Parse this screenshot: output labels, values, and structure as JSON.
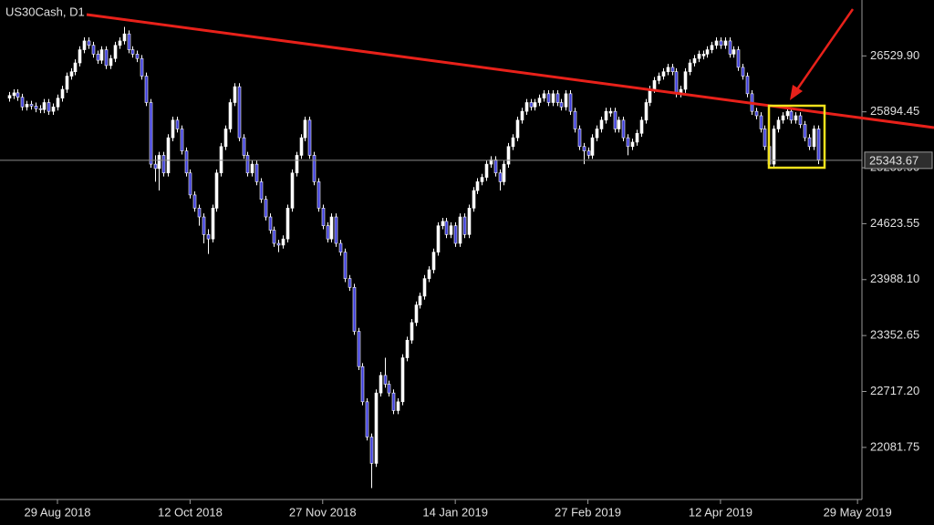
{
  "chart_data": {
    "type": "candlestick",
    "title": "US30Cash, D1",
    "up_color": "#ffffff",
    "down_color": "#3a3ad8",
    "wick_color": "#ffffff",
    "current_price": 25343.67,
    "ylim": [
      21490,
      27165
    ],
    "yticks": [
      {
        "value": 26529.9,
        "label": "26529.90"
      },
      25894.45,
      {
        "value": 25259,
        "label": "25259.00"
      },
      24623.55,
      {
        "value": 23988.1,
        "label": "23988.10"
      },
      23352.65,
      {
        "value": 22717.2,
        "label": "22717.20"
      },
      22081.75
    ],
    "xlim": [
      -2,
      193
    ],
    "xticks": [
      {
        "value": 11,
        "label": "29 Aug 2018"
      },
      {
        "value": 41,
        "label": "12 Oct 2018"
      },
      {
        "value": 71,
        "label": "27 Nov 2018"
      },
      {
        "value": 101,
        "label": "14 Jan 2019"
      },
      {
        "value": 131,
        "label": "27 Feb 2019"
      },
      {
        "value": 161,
        "label": "12 Apr 2019"
      },
      {
        "value": 192,
        "label": "29 May 2019"
      }
    ],
    "ohlc": [
      [
        26050,
        26120,
        26010,
        26080
      ],
      [
        26080,
        26150,
        26040,
        26110
      ],
      [
        26110,
        26150,
        26020,
        26060
      ],
      [
        26060,
        26100,
        25910,
        25950
      ],
      [
        25950,
        26020,
        25910,
        25980
      ],
      [
        25980,
        26020,
        25920,
        25960
      ],
      [
        25960,
        26000,
        25890,
        25930
      ],
      [
        25930,
        25970,
        25880,
        25920
      ],
      [
        25920,
        26040,
        25880,
        26000
      ],
      [
        26000,
        26040,
        25860,
        25900
      ],
      [
        25900,
        25990,
        25860,
        25950
      ],
      [
        25950,
        26090,
        25910,
        26050
      ],
      [
        26050,
        26190,
        26010,
        26150
      ],
      [
        26150,
        26340,
        26110,
        26300
      ],
      [
        26300,
        26390,
        26260,
        26350
      ],
      [
        26350,
        26490,
        26310,
        26450
      ],
      [
        26450,
        26640,
        26410,
        26600
      ],
      [
        26600,
        26740,
        26560,
        26700
      ],
      [
        26700,
        26740,
        26610,
        26650
      ],
      [
        26650,
        26690,
        26510,
        26550
      ],
      [
        26550,
        26590,
        26440,
        26480
      ],
      [
        26480,
        26640,
        26440,
        26600
      ],
      [
        26600,
        26640,
        26380,
        26420
      ],
      [
        26420,
        26540,
        26380,
        26500
      ],
      [
        26500,
        26690,
        26460,
        26650
      ],
      [
        26650,
        26740,
        26610,
        26700
      ],
      [
        26700,
        26860,
        26660,
        26780
      ],
      [
        26780,
        26820,
        26560,
        26600
      ],
      [
        26600,
        26640,
        26510,
        26550
      ],
      [
        26550,
        26590,
        26460,
        26500
      ],
      [
        26500,
        26540,
        26260,
        26300
      ],
      [
        26300,
        26340,
        25960,
        26000
      ],
      [
        26000,
        26040,
        25260,
        25300
      ],
      [
        25300,
        25400,
        25100,
        25250
      ],
      [
        25250,
        25440,
        25000,
        25400
      ],
      [
        25400,
        25440,
        25160,
        25200
      ],
      [
        25200,
        25640,
        25160,
        25600
      ],
      [
        25600,
        25840,
        25560,
        25800
      ],
      [
        25800,
        25840,
        25660,
        25700
      ],
      [
        25700,
        25740,
        25410,
        25450
      ],
      [
        25450,
        25490,
        25160,
        25200
      ],
      [
        25200,
        25240,
        24910,
        24950
      ],
      [
        24950,
        24990,
        24760,
        24800
      ],
      [
        24800,
        24840,
        24600,
        24700
      ],
      [
        24700,
        24740,
        24400,
        24500
      ],
      [
        24500,
        24560,
        24280,
        24450
      ],
      [
        24450,
        24840,
        24410,
        24800
      ],
      [
        24800,
        25240,
        24760,
        25200
      ],
      [
        25200,
        25540,
        25160,
        25500
      ],
      [
        25500,
        25740,
        25460,
        25700
      ],
      [
        25700,
        26040,
        25660,
        26000
      ],
      [
        26000,
        26220,
        25960,
        26180
      ],
      [
        26180,
        26220,
        25560,
        25600
      ],
      [
        25600,
        25640,
        25360,
        25400
      ],
      [
        25400,
        25440,
        25160,
        25200
      ],
      [
        25200,
        25340,
        25160,
        25300
      ],
      [
        25300,
        25340,
        25060,
        25100
      ],
      [
        25100,
        25140,
        24860,
        24900
      ],
      [
        24900,
        24940,
        24660,
        24700
      ],
      [
        24700,
        24740,
        24510,
        24550
      ],
      [
        24550,
        24590,
        24360,
        24400
      ],
      [
        24400,
        24440,
        24300,
        24380
      ],
      [
        24380,
        24490,
        24340,
        24450
      ],
      [
        24450,
        24840,
        24410,
        24800
      ],
      [
        24800,
        25240,
        24760,
        25200
      ],
      [
        25200,
        25440,
        25160,
        25400
      ],
      [
        25400,
        25640,
        25360,
        25600
      ],
      [
        25600,
        25840,
        25560,
        25800
      ],
      [
        25800,
        25840,
        25360,
        25400
      ],
      [
        25400,
        25440,
        25060,
        25100
      ],
      [
        25100,
        25140,
        24760,
        24800
      ],
      [
        24800,
        24840,
        24560,
        24600
      ],
      [
        24600,
        24640,
        24410,
        24450
      ],
      [
        24450,
        24740,
        24410,
        24700
      ],
      [
        24700,
        24740,
        24360,
        24400
      ],
      [
        24400,
        24440,
        24260,
        24300
      ],
      [
        24300,
        24340,
        23960,
        24000
      ],
      [
        24000,
        24040,
        23860,
        23900
      ],
      [
        23900,
        23940,
        23360,
        23400
      ],
      [
        23400,
        23440,
        22960,
        23000
      ],
      [
        23000,
        23040,
        22560,
        22600
      ],
      [
        22600,
        22640,
        22160,
        22200
      ],
      [
        22200,
        22240,
        21620,
        21900
      ],
      [
        21900,
        22740,
        21860,
        22700
      ],
      [
        22700,
        22940,
        22660,
        22900
      ],
      [
        22900,
        23100,
        22760,
        22800
      ],
      [
        22800,
        22840,
        22660,
        22700
      ],
      [
        22700,
        22740,
        22460,
        22500
      ],
      [
        22500,
        22640,
        22460,
        22600
      ],
      [
        22600,
        23140,
        22560,
        23100
      ],
      [
        23100,
        23340,
        23060,
        23300
      ],
      [
        23300,
        23540,
        23260,
        23500
      ],
      [
        23500,
        23740,
        23460,
        23700
      ],
      [
        23700,
        23840,
        23660,
        23800
      ],
      [
        23800,
        24040,
        23760,
        24000
      ],
      [
        24000,
        24140,
        23960,
        24100
      ],
      [
        24100,
        24340,
        24060,
        24300
      ],
      [
        24300,
        24640,
        24260,
        24600
      ],
      [
        24600,
        24690,
        24560,
        24650
      ],
      [
        24650,
        24690,
        24460,
        24500
      ],
      [
        24500,
        24640,
        24460,
        24600
      ],
      [
        24600,
        24640,
        24360,
        24400
      ],
      [
        24400,
        24740,
        24360,
        24700
      ],
      [
        24700,
        24740,
        24460,
        24500
      ],
      [
        24500,
        24840,
        24460,
        24800
      ],
      [
        24800,
        25040,
        24760,
        25000
      ],
      [
        25000,
        25140,
        24960,
        25100
      ],
      [
        25100,
        25190,
        25060,
        25150
      ],
      [
        25150,
        25340,
        25110,
        25300
      ],
      [
        25300,
        25390,
        25260,
        25350
      ],
      [
        25350,
        25390,
        25160,
        25200
      ],
      [
        25200,
        25240,
        25000,
        25100
      ],
      [
        25100,
        25340,
        25060,
        25300
      ],
      [
        25300,
        25540,
        25260,
        25500
      ],
      [
        25500,
        25640,
        25460,
        25600
      ],
      [
        25600,
        25840,
        25560,
        25800
      ],
      [
        25800,
        25940,
        25760,
        25900
      ],
      [
        25900,
        26040,
        25860,
        26000
      ],
      [
        26000,
        26040,
        25910,
        25950
      ],
      [
        25950,
        26040,
        25910,
        26000
      ],
      [
        26000,
        26090,
        25960,
        26050
      ],
      [
        26050,
        26140,
        26010,
        26100
      ],
      [
        26100,
        26140,
        25960,
        26000
      ],
      [
        26000,
        26140,
        25960,
        26100
      ],
      [
        26100,
        26140,
        25960,
        26000
      ],
      [
        26000,
        26040,
        25910,
        25950
      ],
      [
        25950,
        26140,
        25910,
        26100
      ],
      [
        26100,
        26140,
        25860,
        25900
      ],
      [
        25900,
        25940,
        25660,
        25700
      ],
      [
        25700,
        25740,
        25460,
        25500
      ],
      [
        25500,
        25540,
        25300,
        25450
      ],
      [
        25450,
        25490,
        25360,
        25400
      ],
      [
        25400,
        25640,
        25360,
        25600
      ],
      [
        25600,
        25740,
        25560,
        25700
      ],
      [
        25700,
        25840,
        25660,
        25800
      ],
      [
        25800,
        25940,
        25760,
        25900
      ],
      [
        25880,
        25940,
        25840,
        25900
      ],
      [
        25900,
        25940,
        25660,
        25700
      ],
      [
        25700,
        25840,
        25660,
        25800
      ],
      [
        25800,
        25840,
        25560,
        25600
      ],
      [
        25600,
        25640,
        25400,
        25500
      ],
      [
        25500,
        25590,
        25460,
        25550
      ],
      [
        25550,
        25690,
        25510,
        25650
      ],
      [
        25650,
        25840,
        25610,
        25800
      ],
      [
        25800,
        26040,
        25760,
        26000
      ],
      [
        26000,
        26190,
        25960,
        26150
      ],
      [
        26150,
        26290,
        26110,
        26250
      ],
      [
        26250,
        26340,
        26210,
        26300
      ],
      [
        26300,
        26390,
        26260,
        26350
      ],
      [
        26350,
        26440,
        26310,
        26400
      ],
      [
        26400,
        26440,
        26310,
        26350
      ],
      [
        26350,
        26390,
        26060,
        26100
      ],
      [
        26100,
        26190,
        26060,
        26150
      ],
      [
        26150,
        26390,
        26110,
        26350
      ],
      [
        26350,
        26490,
        26310,
        26450
      ],
      [
        26450,
        26540,
        26410,
        26500
      ],
      [
        26500,
        26590,
        26460,
        26550
      ],
      [
        26530,
        26590,
        26490,
        26550
      ],
      [
        26550,
        26640,
        26510,
        26600
      ],
      [
        26600,
        26690,
        26560,
        26650
      ],
      [
        26650,
        26740,
        26610,
        26700
      ],
      [
        26700,
        26740,
        26610,
        26650
      ],
      [
        26650,
        26740,
        26610,
        26700
      ],
      [
        26700,
        26740,
        26510,
        26550
      ],
      [
        26550,
        26640,
        26510,
        26600
      ],
      [
        26600,
        26640,
        26360,
        26400
      ],
      [
        26400,
        26440,
        26260,
        26300
      ],
      [
        26300,
        26340,
        26060,
        26100
      ],
      [
        26100,
        26140,
        25860,
        25900
      ],
      [
        25900,
        25940,
        25810,
        25850
      ],
      [
        25850,
        25890,
        25660,
        25700
      ],
      [
        25700,
        25740,
        25460,
        25500
      ],
      [
        25500,
        25540,
        25260,
        25300
      ],
      [
        25300,
        25740,
        25260,
        25700
      ],
      [
        25700,
        25840,
        25660,
        25800
      ],
      [
        25800,
        25890,
        25760,
        25850
      ],
      [
        25850,
        25940,
        25810,
        25900
      ],
      [
        25900,
        25940,
        25760,
        25800
      ],
      [
        25800,
        25890,
        25760,
        25850
      ],
      [
        25850,
        25890,
        25710,
        25750
      ],
      [
        25750,
        25790,
        25560,
        25600
      ],
      [
        25600,
        25640,
        25460,
        25500
      ],
      [
        25500,
        25740,
        25460,
        25700
      ],
      [
        25700,
        25740,
        25300,
        25350
      ]
    ]
  }
}
